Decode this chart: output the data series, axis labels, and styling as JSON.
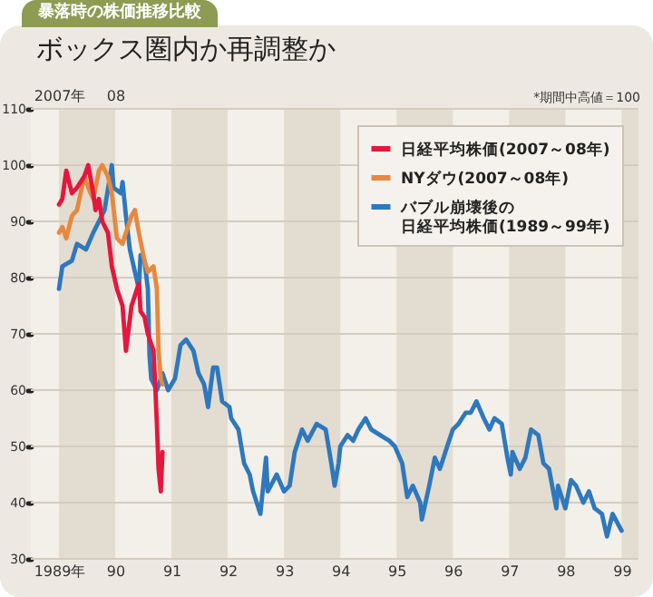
{
  "chart_data": {
    "type": "line",
    "title": "ボックス圏内か再調整か",
    "subtitle": "暴落時の株価推移比較",
    "annotations": [
      "*期間中高値＝100"
    ],
    "xlim": [
      1988.5,
      1999.3
    ],
    "xticks": [
      {
        "value": 1989,
        "label": "1989年"
      },
      {
        "value": 1990,
        "label": "90"
      },
      {
        "value": 1991,
        "label": "91"
      },
      {
        "value": 1992,
        "label": "92"
      },
      {
        "value": 1993,
        "label": "93"
      },
      {
        "value": 1994,
        "label": "94"
      },
      {
        "value": 1995,
        "label": "95"
      },
      {
        "value": 1996,
        "label": "96"
      },
      {
        "value": 1997,
        "label": "97"
      },
      {
        "value": 1998,
        "label": "98"
      },
      {
        "value": 1999,
        "label": "99"
      }
    ],
    "x2lim": [
      2006.5,
      2017.3
    ],
    "x2ticks": [
      {
        "value": 2007,
        "label": "2007年"
      },
      {
        "value": 2008,
        "label": "08"
      }
    ],
    "ylim": [
      30,
      110
    ],
    "yticks": [
      30,
      40,
      50,
      60,
      70,
      80,
      90,
      100,
      110
    ],
    "grid": "y",
    "legend": "top right",
    "bands": [
      {
        "axis": "x",
        "from": 1989,
        "to": 1990,
        "color": "#e3dcd1"
      },
      {
        "axis": "x",
        "from": 1991,
        "to": 1992,
        "color": "#e3dcd1"
      },
      {
        "axis": "x",
        "from": 1993,
        "to": 1994,
        "color": "#e3dcd1"
      },
      {
        "axis": "x",
        "from": 1995,
        "to": 1996,
        "color": "#e3dcd1"
      },
      {
        "axis": "x",
        "from": 1997,
        "to": 1998,
        "color": "#e3dcd1"
      },
      {
        "axis": "x",
        "from": 1999,
        "to": 1999.3,
        "color": "#e3dcd1"
      }
    ],
    "series": [
      {
        "name": "日経平均株価(2007～08年)",
        "color": "#e5173d",
        "axis": "x2",
        "x": [
          2007.0,
          2007.06,
          2007.13,
          2007.23,
          2007.32,
          2007.45,
          2007.52,
          2007.61,
          2007.65,
          2007.71,
          2007.77,
          2007.87,
          2007.94,
          2008.03,
          2008.13,
          2008.19,
          2008.29,
          2008.42,
          2008.45,
          2008.52,
          2008.58,
          2008.68,
          2008.71,
          2008.74,
          2008.77,
          2008.81,
          2008.84
        ],
        "values": [
          93,
          94,
          99,
          95,
          96,
          98,
          100,
          95,
          92,
          94,
          90,
          88,
          82,
          78,
          75,
          67,
          75,
          79,
          74,
          73,
          70,
          67,
          61,
          54,
          46,
          42,
          49
        ]
      },
      {
        "name": "NYダウ(2007～08年)",
        "color": "#e8883d",
        "axis": "x2",
        "x": [
          2007.0,
          2007.06,
          2007.13,
          2007.23,
          2007.32,
          2007.45,
          2007.52,
          2007.61,
          2007.71,
          2007.77,
          2007.87,
          2007.94,
          2008.03,
          2008.13,
          2008.19,
          2008.29,
          2008.35,
          2008.42,
          2008.52,
          2008.58,
          2008.68,
          2008.74,
          2008.77,
          2008.81,
          2008.84
        ],
        "values": [
          88,
          89,
          87,
          91,
          92,
          98,
          96,
          94,
          99,
          100,
          98,
          95,
          87,
          86,
          88,
          91,
          92,
          88,
          83,
          81,
          82,
          78,
          67,
          62,
          61
        ]
      },
      {
        "name": "バブル崩壊後の日経平均株価(1989～99年)",
        "color": "#2e78bd",
        "x": [
          1989.0,
          1989.06,
          1989.23,
          1989.32,
          1989.48,
          1989.61,
          1989.71,
          1989.81,
          1989.94,
          1989.97,
          1990.1,
          1990.13,
          1990.19,
          1990.26,
          1990.35,
          1990.42,
          1990.45,
          1990.52,
          1990.58,
          1990.61,
          1990.64,
          1990.74,
          1990.84,
          1990.94,
          1991.06,
          1991.16,
          1991.26,
          1991.39,
          1991.48,
          1991.58,
          1991.65,
          1991.74,
          1991.81,
          1991.9,
          1992.03,
          1992.06,
          1992.19,
          1992.29,
          1992.39,
          1992.45,
          1992.58,
          1992.68,
          1992.71,
          1992.87,
          1993.0,
          1993.1,
          1993.19,
          1993.32,
          1993.42,
          1993.58,
          1993.74,
          1993.84,
          1993.9,
          1993.97,
          1994.0,
          1994.13,
          1994.23,
          1994.32,
          1994.45,
          1994.55,
          1994.71,
          1994.87,
          1994.97,
          1995.1,
          1995.19,
          1995.29,
          1995.42,
          1995.45,
          1995.58,
          1995.68,
          1995.77,
          1995.9,
          1996.0,
          1996.1,
          1996.23,
          1996.32,
          1996.42,
          1996.55,
          1996.65,
          1996.74,
          1996.87,
          1996.97,
          1997.03,
          1997.06,
          1997.19,
          1997.29,
          1997.39,
          1997.52,
          1997.61,
          1997.71,
          1997.84,
          1997.87,
          1998.0,
          1998.1,
          1998.19,
          1998.32,
          1998.42,
          1998.52,
          1998.65,
          1998.74,
          1998.84,
          1999.0
        ],
        "values": [
          78,
          82,
          83,
          86,
          85,
          88,
          90,
          92,
          100,
          96,
          95,
          97,
          91,
          85,
          81,
          78,
          84,
          83,
          78,
          66,
          62,
          60,
          63,
          60,
          62,
          68,
          69,
          67,
          63,
          61,
          57,
          64,
          64,
          58,
          57,
          55,
          53,
          47,
          45,
          42,
          38,
          48,
          42,
          45,
          42,
          43,
          49,
          53,
          51,
          54,
          53,
          47,
          43,
          47,
          50,
          52,
          51,
          53,
          55,
          53,
          52,
          51,
          50,
          47,
          41,
          43,
          40,
          37,
          43,
          48,
          46,
          50,
          53,
          54,
          56,
          56,
          58,
          55,
          53,
          55,
          54,
          48,
          45,
          49,
          46,
          48,
          53,
          52,
          47,
          46,
          39,
          43,
          39,
          44,
          43,
          40,
          42,
          39,
          38,
          34,
          38,
          35
        ]
      }
    ]
  }
}
